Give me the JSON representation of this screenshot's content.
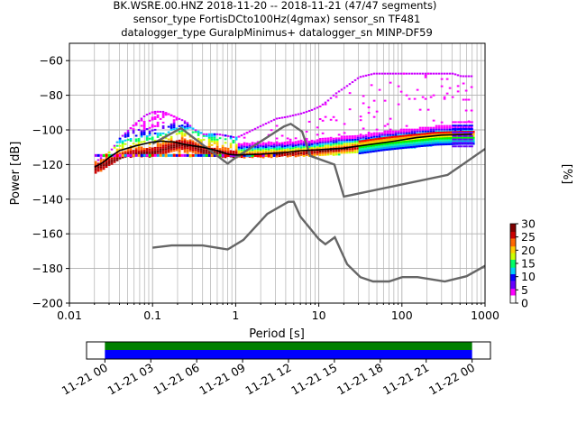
{
  "chart_data": {
    "type": "psd",
    "title_lines": [
      "BK.WSRE.00.HNZ   2018-11-20 -- 2018-11-21  (47/47 segments)",
      "sensor_type FortisDCto100Hz(4gmax) sensor_sn TF481",
      "datalogger_type GuralpMinimus+ datalogger_sn MINP-DF59"
    ],
    "xlabel": "Period [s]",
    "ylabel": "Power [dB]",
    "x_scale": "log",
    "xlim": [
      0.01,
      1000
    ],
    "ylim": [
      -200,
      -50
    ],
    "x_ticks": [
      {
        "value": 0.01,
        "label": "0.01"
      },
      {
        "value": 0.1,
        "label": "0.1"
      },
      {
        "value": 1,
        "label": "1"
      },
      {
        "value": 10,
        "label": "10"
      },
      {
        "value": 100,
        "label": "100"
      },
      {
        "value": 1000,
        "label": "1000"
      }
    ],
    "y_ticks": [
      {
        "value": -60,
        "label": "−60"
      },
      {
        "value": -80,
        "label": "−80"
      },
      {
        "value": -100,
        "label": "−100"
      },
      {
        "value": -120,
        "label": "−120"
      },
      {
        "value": -140,
        "label": "−140"
      },
      {
        "value": -160,
        "label": "−160"
      },
      {
        "value": -180,
        "label": "−180"
      },
      {
        "value": -200,
        "label": "−200"
      }
    ],
    "grid": true,
    "colorbar": {
      "label": "[%]",
      "range": [
        0,
        30
      ],
      "ticks": [
        {
          "value": 0,
          "label": "0"
        },
        {
          "value": 5,
          "label": "5"
        },
        {
          "value": 10,
          "label": "10"
        },
        {
          "value": 15,
          "label": "15"
        },
        {
          "value": 20,
          "label": "20"
        },
        {
          "value": 25,
          "label": "25"
        },
        {
          "value": 30,
          "label": "30"
        }
      ],
      "colors": [
        "#ffffff",
        "#ff00ff",
        "#6600ff",
        "#0000ff",
        "#00ccff",
        "#00ff66",
        "#ccff00",
        "#ffcc00",
        "#ff6600",
        "#cc0000",
        "#800000"
      ]
    },
    "noise_model_color": "#666666",
    "new_high_noise_model": [
      [
        0.1,
        -108
      ],
      [
        0.22,
        -99
      ],
      [
        0.32,
        -105
      ],
      [
        0.8,
        -119.5
      ],
      [
        1.0,
        -116
      ],
      [
        3.8,
        -98
      ],
      [
        4.6,
        -96.5
      ],
      [
        6.3,
        -101
      ],
      [
        7.9,
        -115
      ],
      [
        15.4,
        -120
      ],
      [
        20,
        -138.5
      ],
      [
        354.8,
        -126
      ],
      [
        1000,
        -111
      ]
    ],
    "new_low_noise_model": [
      [
        0.1,
        -168
      ],
      [
        0.17,
        -166.7
      ],
      [
        0.4,
        -166.7
      ],
      [
        0.8,
        -169
      ],
      [
        1.24,
        -163.5
      ],
      [
        2.4,
        -148.5
      ],
      [
        4.3,
        -141.5
      ],
      [
        5.0,
        -141.5
      ],
      [
        6.0,
        -150
      ],
      [
        10,
        -163
      ],
      [
        12,
        -166
      ],
      [
        15.6,
        -162
      ],
      [
        21.9,
        -177.5
      ],
      [
        31.6,
        -185
      ],
      [
        45,
        -187.5
      ],
      [
        70,
        -187.5
      ],
      [
        101,
        -185
      ],
      [
        154,
        -185
      ],
      [
        328,
        -187.5
      ],
      [
        600,
        -184.5
      ],
      [
        1000,
        -178.5
      ]
    ],
    "mean_curve": [
      [
        0.02,
        -121.5
      ],
      [
        0.025,
        -119
      ],
      [
        0.03,
        -116
      ],
      [
        0.04,
        -112
      ],
      [
        0.06,
        -109.5
      ],
      [
        0.08,
        -108
      ],
      [
        0.1,
        -107
      ],
      [
        0.13,
        -106.5
      ],
      [
        0.18,
        -107
      ],
      [
        0.25,
        -108.5
      ],
      [
        0.4,
        -110
      ],
      [
        0.6,
        -112
      ],
      [
        0.8,
        -114
      ],
      [
        1.0,
        -114.5
      ],
      [
        2,
        -114
      ],
      [
        4,
        -113
      ],
      [
        6,
        -112
      ],
      [
        10,
        -111.5
      ],
      [
        20,
        -110.5
      ],
      [
        40,
        -108.5
      ],
      [
        80,
        -106.5
      ],
      [
        150,
        -104.5
      ],
      [
        300,
        -103
      ],
      [
        700,
        -102.5
      ]
    ],
    "mode_curve": [
      [
        0.02,
        -122
      ],
      [
        0.03,
        -118
      ],
      [
        0.05,
        -114
      ],
      [
        0.08,
        -113
      ],
      [
        0.1,
        -112.5
      ],
      [
        0.15,
        -110
      ],
      [
        0.2,
        -108
      ],
      [
        0.3,
        -109
      ],
      [
        0.4,
        -112
      ],
      [
        0.6,
        -113
      ],
      [
        0.8,
        -114
      ],
      [
        1.0,
        -114.5
      ],
      [
        2,
        -114
      ],
      [
        4,
        -113.5
      ],
      [
        8,
        -112.5
      ],
      [
        15,
        -111
      ],
      [
        30,
        -109.5
      ],
      [
        60,
        -107.5
      ],
      [
        120,
        -106
      ],
      [
        250,
        -104.5
      ],
      [
        500,
        -104
      ],
      [
        700,
        -104
      ]
    ],
    "envelope_upper": [
      [
        0.02,
        -118
      ],
      [
        0.03,
        -112
      ],
      [
        0.04,
        -104
      ],
      [
        0.06,
        -96
      ],
      [
        0.08,
        -91
      ],
      [
        0.1,
        -89
      ],
      [
        0.13,
        -89
      ],
      [
        0.18,
        -92
      ],
      [
        0.25,
        -95
      ],
      [
        0.3,
        -99
      ],
      [
        0.4,
        -102
      ],
      [
        0.6,
        -102
      ],
      [
        1,
        -104
      ],
      [
        2,
        -97
      ],
      [
        3,
        -93
      ],
      [
        4,
        -92
      ],
      [
        6,
        -90
      ],
      [
        8,
        -88
      ],
      [
        10,
        -86
      ],
      [
        13,
        -82
      ],
      [
        15,
        -79
      ],
      [
        20,
        -75
      ],
      [
        30,
        -69
      ],
      [
        45,
        -67
      ],
      [
        200,
        -67
      ],
      [
        400,
        -67
      ],
      [
        500,
        -68.5
      ],
      [
        700,
        -68.5
      ]
    ],
    "envelope_lower": [
      [
        0.02,
        -125
      ],
      [
        0.03,
        -120
      ],
      [
        0.04,
        -116
      ],
      [
        0.06,
        -115
      ],
      [
        0.1,
        -115
      ],
      [
        0.2,
        -115
      ],
      [
        0.4,
        -115
      ],
      [
        0.6,
        -115.5
      ],
      [
        1,
        -115.5
      ],
      [
        2,
        -115.5
      ],
      [
        4,
        -115
      ],
      [
        8,
        -114.5
      ],
      [
        15,
        -114
      ],
      [
        30,
        -113
      ],
      [
        60,
        -111
      ],
      [
        120,
        -110
      ],
      [
        250,
        -108.5
      ],
      [
        700,
        -107
      ]
    ],
    "timeline": {
      "tick_labels": [
        "11-21 00",
        "11-21 03",
        "11-21 06",
        "11-21 09",
        "11-21 12",
        "11-21 15",
        "11-21 18",
        "11-21 21",
        "11-22 00"
      ],
      "tick_hours": [
        0,
        3,
        6,
        9,
        12,
        15,
        18,
        21,
        24
      ],
      "data_span_hours": [
        0,
        24
      ],
      "axis_span_hours": [
        -1.2,
        25.2
      ],
      "band_colors": [
        "#008000",
        "#0000ff"
      ]
    }
  }
}
